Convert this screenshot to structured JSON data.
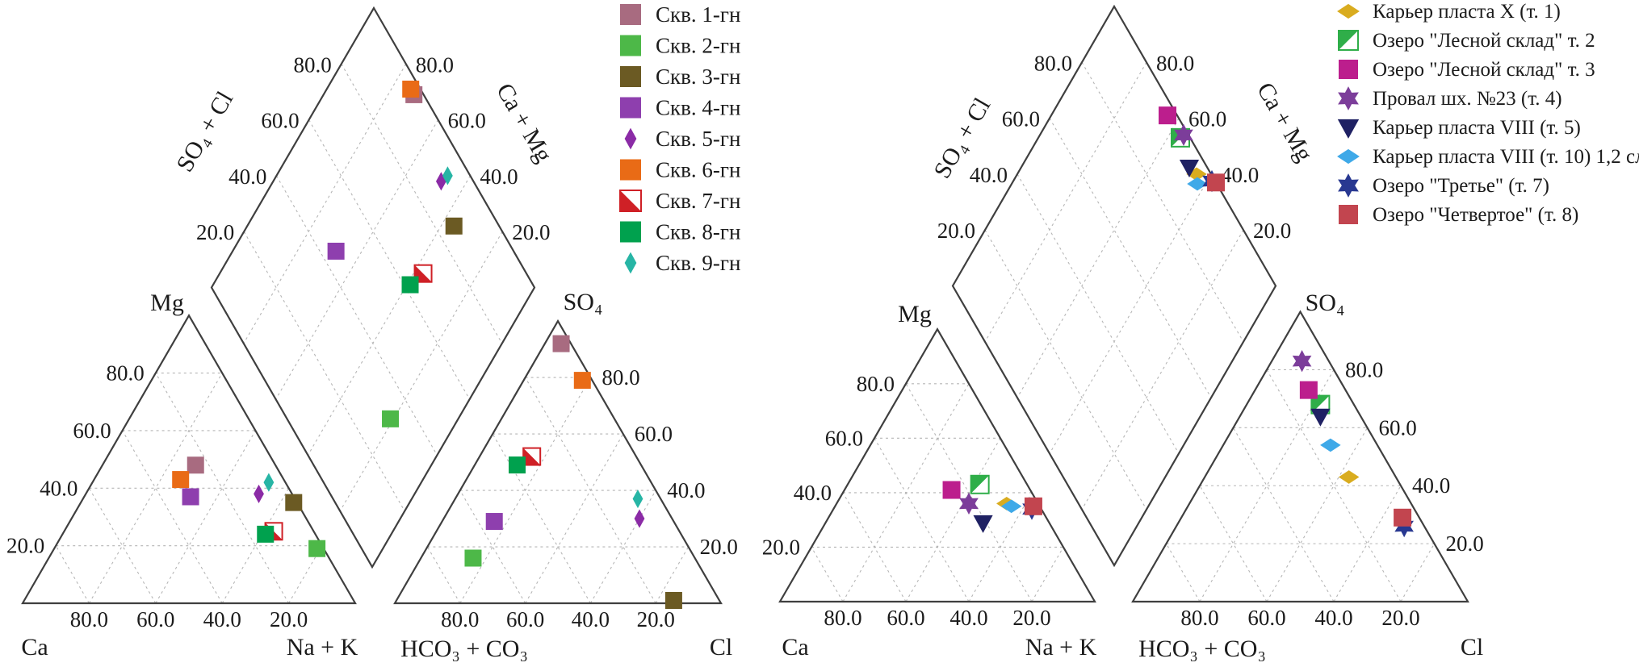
{
  "chart_data": {
    "type": "piper_trilinear",
    "title": "",
    "tick_labels": [
      "20.0",
      "40.0",
      "60.0",
      "80.0"
    ],
    "tick_values": [
      20,
      40,
      60,
      80
    ],
    "layout_hints": {
      "grid": "dashed-light-gray",
      "panels": 2,
      "legend_position": "upper-right-of-each-panel",
      "units": "percent meq"
    },
    "diagrams": [
      {
        "id": "left",
        "axis_labels": {
          "cation_apex": "Mg",
          "cation_bottom_left": "Ca",
          "cation_bottom_right": "Na + K",
          "anion_apex": "SO₄",
          "anion_bottom_left": "HCO₃ + CO₃",
          "anion_bottom_right": "Cl",
          "diamond_left": "SO₄ + Cl",
          "diamond_right": "Ca + Mg"
        },
        "samples": [
          {
            "label": "Скв. 1-гн",
            "marker": "square",
            "color": "#a86b80",
            "ca": 24,
            "mg": 48,
            "na_k": 28,
            "hco3_co3": 3,
            "so4": 92,
            "cl": 5
          },
          {
            "label": "Скв. 2-гн",
            "marker": "square",
            "color": "#4db848",
            "ca": 2,
            "mg": 19,
            "na_k": 79,
            "hco3_co3": 68,
            "so4": 16,
            "cl": 16
          },
          {
            "label": "Скв. 3-гн",
            "marker": "square",
            "color": "#6b5a23",
            "ca": 1,
            "mg": 35,
            "na_k": 64,
            "hco3_co3": 14,
            "so4": 1,
            "cl": 85
          },
          {
            "label": "Скв. 4-гн",
            "marker": "square",
            "color": "#8e3fae",
            "ca": 31,
            "mg": 37,
            "na_k": 32,
            "hco3_co3": 55,
            "so4": 29,
            "cl": 16
          },
          {
            "label": "Скв. 5-гн",
            "marker": "diamond_tall",
            "color": "#8b2ba6",
            "ca": 10,
            "mg": 38,
            "na_k": 52,
            "hco3_co3": 10,
            "so4": 30,
            "cl": 60
          },
          {
            "label": "Скв. 6-гн",
            "marker": "square",
            "color": "#e96b16",
            "ca": 31,
            "mg": 43,
            "na_k": 26,
            "hco3_co3": 3,
            "so4": 79,
            "cl": 18
          },
          {
            "label": "Скв. 7-гн",
            "marker": "half_square_bl",
            "color": "#cf2026",
            "ca": 12,
            "mg": 25,
            "na_k": 63,
            "hco3_co3": 32,
            "so4": 52,
            "cl": 16
          },
          {
            "label": "Скв. 8-гн",
            "marker": "square",
            "color": "#00a14e",
            "ca": 15,
            "mg": 24,
            "na_k": 61,
            "hco3_co3": 38,
            "so4": 49,
            "cl": 13
          },
          {
            "label": "Скв. 9-гн",
            "marker": "diamond_tall",
            "color": "#27b5a5",
            "ca": 5,
            "mg": 42,
            "na_k": 53,
            "hco3_co3": 7,
            "so4": 37,
            "cl": 56
          }
        ]
      },
      {
        "id": "right",
        "axis_labels": {
          "cation_apex": "Mg",
          "cation_bottom_left": "Ca",
          "cation_bottom_right": "Na + K",
          "anion_apex": "SO₄",
          "anion_bottom_left": "HCO₃ + CO₃",
          "anion_bottom_right": "Cl",
          "diamond_left": "SO₄ + Cl",
          "diamond_right": "Ca + Mg"
        },
        "samples": [
          {
            "label": "Карьер пласта X (т. 1)",
            "marker": "diamond_flat",
            "color": "#d9ac1f",
            "ca": 10,
            "mg": 36,
            "na_k": 54,
            "hco3_co3": 14,
            "so4": 43,
            "cl": 43,
            "diamond_so4_cl": 95.5,
            "diamond_ca_mg": 44.5
          },
          {
            "label": "Озеро \"Лесной склад\" т. 2",
            "marker": "half_square_tl",
            "color": "#2fae49",
            "ca": 15,
            "mg": 43,
            "na_k": 42,
            "hco3_co3": 10,
            "so4": 68,
            "cl": 22,
            "diamond_so4_cl": 97,
            "diamond_ca_mg": 56
          },
          {
            "label": "Озеро \"Лесной склад\" т. 3",
            "marker": "square",
            "color": "#bc1e8d",
            "ca": 25,
            "mg": 41,
            "na_k": 34,
            "hco3_co3": 11,
            "so4": 73,
            "cl": 16,
            "diamond_so4_cl": 97,
            "diamond_ca_mg": 64
          },
          {
            "label": "Провал шх. №23 (т. 4)",
            "marker": "star6",
            "color": "#7c3d9a",
            "ca": 22,
            "mg": 36,
            "na_k": 42,
            "hco3_co3": 8,
            "so4": 83,
            "cl": 9,
            "diamond_so4_cl": 98.5,
            "diamond_ca_mg": 55.5
          },
          {
            "label": "Карьер пласта VIII (т. 5)",
            "marker": "triangle_down",
            "color": "#1f2163",
            "ca": 21,
            "mg": 29,
            "na_k": 50,
            "hco3_co3": 12,
            "so4": 64,
            "cl": 24,
            "diamond_so4_cl": 94.5,
            "diamond_ca_mg": 48
          },
          {
            "label": "Карьер пласта VIII (т. 10) 1,2 сл.",
            "marker": "diamond_flat",
            "color": "#3fa9e8",
            "ca": 9,
            "mg": 35,
            "na_k": 56,
            "hco3_co3": 14,
            "so4": 54,
            "cl": 32,
            "diamond_so4_cl": 94,
            "diamond_ca_mg": 42.5
          },
          {
            "label": "Озеро \"Третье\" (т. 7)",
            "marker": "star6",
            "color": "#283891",
            "ca": 3,
            "mg": 34,
            "na_k": 63,
            "hco3_co3": 6,
            "so4": 26,
            "cl": 68,
            "diamond_so4_cl": 99,
            "diamond_ca_mg": 38.5
          },
          {
            "label": "Озеро \"Четвертое\" (т. 8)",
            "marker": "square",
            "color": "#c2454f",
            "ca": 2,
            "mg": 35,
            "na_k": 63,
            "hco3_co3": 5,
            "so4": 29,
            "cl": 66,
            "diamond_so4_cl": 100,
            "diamond_ca_mg": 37
          }
        ]
      }
    ]
  }
}
